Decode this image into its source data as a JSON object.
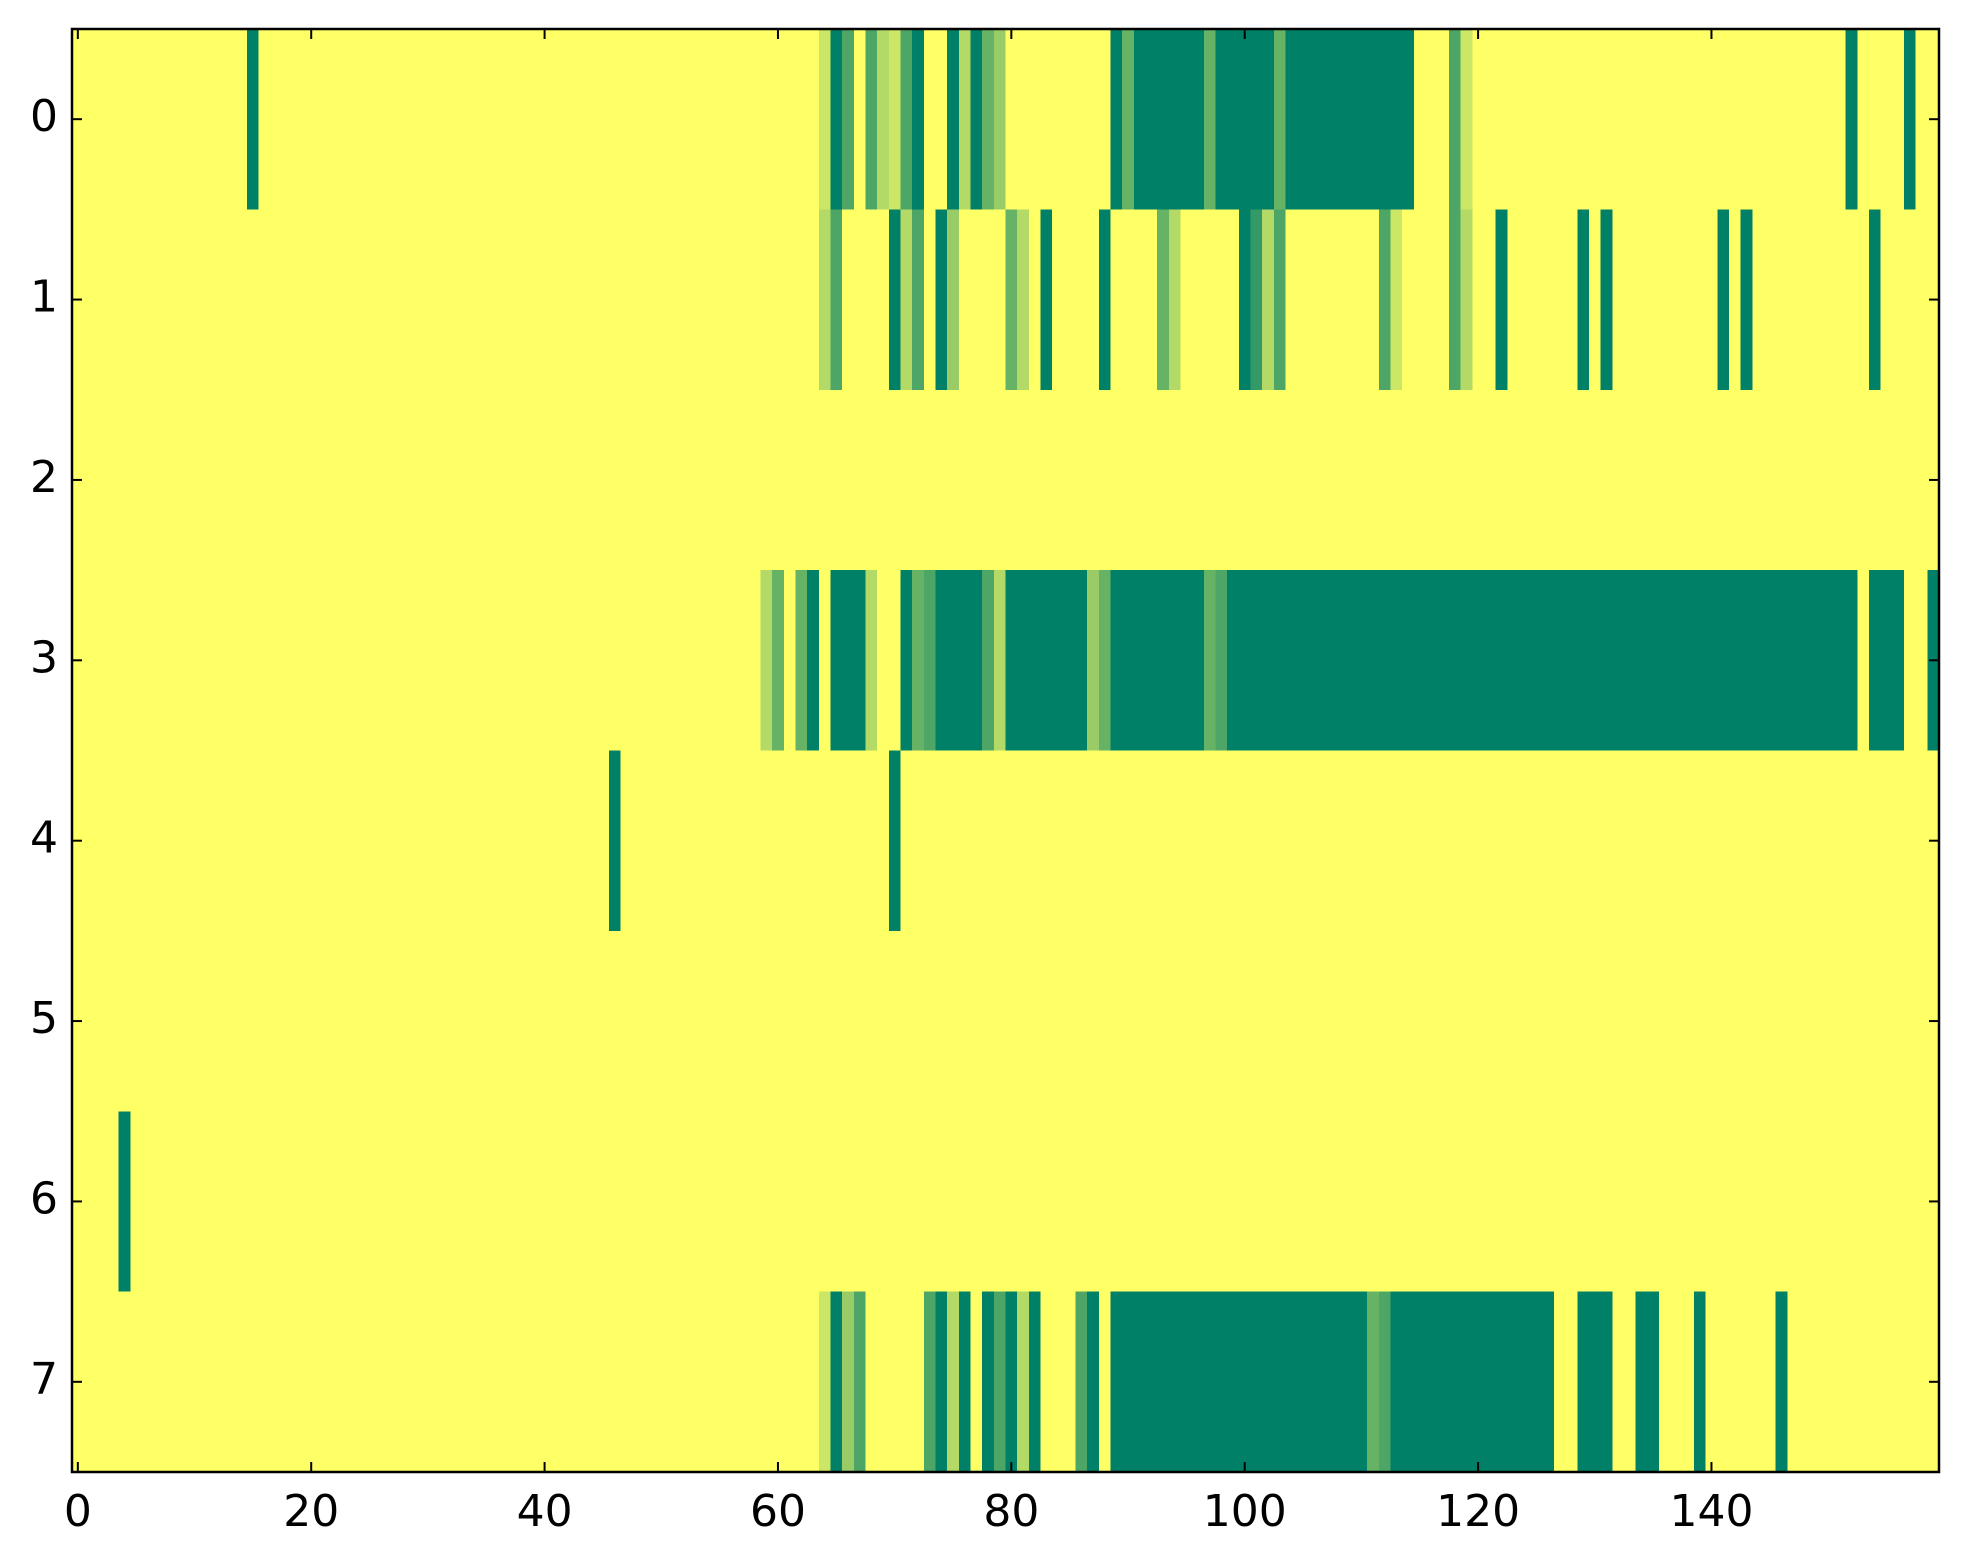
{
  "chart_data": {
    "type": "heatmap",
    "colormap": [
      "#ffff66",
      "#008066"
    ],
    "xlim": [
      -0.5,
      159.5
    ],
    "xticks": [
      0,
      20,
      40,
      60,
      80,
      100,
      120,
      140
    ],
    "ylim": [
      7.5,
      -0.5
    ],
    "yticks": [
      0,
      1,
      2,
      3,
      4,
      5,
      6,
      7
    ],
    "values": [
      [
        0,
        0,
        0,
        0,
        0,
        0,
        0,
        0,
        0,
        0,
        0,
        0,
        0,
        0,
        0,
        1,
        0,
        0,
        0,
        0,
        0,
        0,
        0,
        0,
        0,
        0,
        0,
        0,
        0,
        0,
        0,
        0,
        0,
        0,
        0,
        0,
        0,
        0,
        0,
        0,
        0,
        0,
        0,
        0,
        0,
        0,
        0,
        0,
        0,
        0,
        0,
        0,
        0,
        0,
        0,
        0,
        0,
        0,
        0,
        0,
        0,
        0,
        0,
        0,
        0.2,
        1,
        0.7,
        0,
        0.7,
        0.3,
        0.2,
        0.7,
        1,
        0,
        0,
        1,
        0.3,
        1,
        0.6,
        0.4,
        0,
        0,
        0,
        0,
        0,
        0,
        0,
        0,
        0,
        1,
        0.6,
        1,
        1,
        1,
        1,
        1,
        1,
        0.6,
        1,
        1,
        1,
        1,
        1,
        0.6,
        1,
        1,
        1,
        1,
        1,
        1,
        1,
        1,
        1,
        1,
        1,
        0,
        0,
        0,
        0.7,
        0.2,
        0,
        0,
        0,
        0,
        0,
        0,
        0,
        0,
        0,
        0,
        0,
        0,
        0,
        0,
        0,
        0,
        0,
        0,
        0,
        0,
        0,
        0,
        0,
        0,
        0,
        0,
        0,
        0,
        0,
        0,
        0,
        0,
        1,
        0,
        0,
        0,
        0,
        1,
        0,
        0
      ],
      [
        0,
        0,
        0,
        0,
        0,
        0,
        0,
        0,
        0,
        0,
        0,
        0,
        0,
        0,
        0,
        0,
        0,
        0,
        0,
        0,
        0,
        0,
        0,
        0,
        0,
        0,
        0,
        0,
        0,
        0,
        0,
        0,
        0,
        0,
        0,
        0,
        0,
        0,
        0,
        0,
        0,
        0,
        0,
        0,
        0,
        0,
        0,
        0,
        0,
        0,
        0,
        0,
        0,
        0,
        0,
        0,
        0,
        0,
        0,
        0,
        0,
        0,
        0,
        0,
        0.3,
        0.7,
        0,
        0,
        0,
        0,
        1,
        0.3,
        0.7,
        0,
        1,
        0.4,
        0,
        0,
        0,
        0,
        0.6,
        0.3,
        0,
        1,
        0,
        0,
        0,
        0,
        1,
        0,
        0,
        0,
        0,
        0.6,
        0.3,
        0,
        0,
        0,
        0,
        0,
        1,
        0.8,
        0.3,
        0.7,
        0,
        0,
        0,
        0,
        0,
        0,
        0,
        0,
        0.7,
        0.2,
        0,
        0,
        0,
        0,
        0.7,
        0.3,
        0,
        0,
        1,
        0,
        0,
        0,
        0,
        0,
        0,
        1,
        0,
        1,
        0,
        0,
        0,
        0,
        0,
        0,
        0,
        0,
        0,
        1,
        0,
        1,
        0,
        0,
        0,
        0,
        0,
        0,
        0,
        0,
        0,
        0,
        1,
        0,
        0,
        0,
        0,
        0
      ],
      [
        0,
        0,
        0,
        0,
        0,
        0,
        0,
        0,
        0,
        0,
        0,
        0,
        0,
        0,
        0,
        0,
        0,
        0,
        0,
        0,
        0,
        0,
        0,
        0,
        0,
        0,
        0,
        0,
        0,
        0,
        0,
        0,
        0,
        0,
        0,
        0,
        0,
        0,
        0,
        0,
        0,
        0,
        0,
        0,
        0,
        0,
        0,
        0,
        0,
        0,
        0,
        0,
        0,
        0,
        0,
        0,
        0,
        0,
        0,
        0,
        0,
        0,
        0,
        0,
        0,
        0,
        0,
        0,
        0,
        0,
        0,
        0,
        0,
        0,
        0,
        0,
        0,
        0,
        0,
        0,
        0,
        0,
        0,
        0,
        0,
        0,
        0,
        0,
        0,
        0,
        0,
        0,
        0,
        0,
        0,
        0,
        0,
        0,
        0,
        0,
        0,
        0,
        0,
        0,
        0,
        0,
        0,
        0,
        0,
        0,
        0,
        0,
        0,
        0,
        0,
        0,
        0,
        0,
        0,
        0,
        0,
        0,
        0,
        0,
        0,
        0,
        0,
        0,
        0,
        0,
        0,
        0,
        0,
        0,
        0,
        0,
        0,
        0,
        0,
        0,
        0,
        0,
        0,
        0,
        0,
        0,
        0,
        0,
        0,
        0,
        0,
        0,
        0,
        0,
        0,
        0,
        0,
        0,
        0,
        0
      ],
      [
        0,
        0,
        0,
        0,
        0,
        0,
        0,
        0,
        0,
        0,
        0,
        0,
        0,
        0,
        0,
        0,
        0,
        0,
        0,
        0,
        0,
        0,
        0,
        0,
        0,
        0,
        0,
        0,
        0,
        0,
        0,
        0,
        0,
        0,
        0,
        0,
        0,
        0,
        0,
        0,
        0,
        0,
        0,
        0,
        0,
        0,
        0,
        0,
        0,
        0,
        0,
        0,
        0,
        0,
        0,
        0,
        0,
        0,
        0,
        0.3,
        0.6,
        0,
        0.6,
        1,
        0,
        1,
        1,
        1,
        0.3,
        0,
        0,
        1,
        0.6,
        0.7,
        1,
        1,
        1,
        1,
        0.7,
        0.3,
        1,
        1,
        1,
        1,
        1,
        1,
        1,
        0.4,
        0.6,
        1,
        1,
        1,
        1,
        1,
        1,
        1,
        1,
        0.6,
        0.7,
        1,
        1,
        1,
        1,
        1,
        1,
        1,
        1,
        1,
        1,
        1,
        1,
        1,
        1,
        1,
        1,
        1,
        1,
        1,
        1,
        1,
        1,
        1,
        1,
        1,
        1,
        1,
        1,
        1,
        1,
        1,
        1,
        1,
        1,
        1,
        1,
        1,
        1,
        1,
        1,
        1,
        1,
        1,
        1,
        1,
        1,
        1,
        1,
        1,
        1,
        1,
        1,
        1,
        1,
        0,
        1,
        1,
        1,
        0,
        0,
        1
      ],
      [
        0,
        0,
        0,
        0,
        0,
        0,
        0,
        0,
        0,
        0,
        0,
        0,
        0,
        0,
        0,
        0,
        0,
        0,
        0,
        0,
        0,
        0,
        0,
        0,
        0,
        0,
        0,
        0,
        0,
        0,
        0,
        0,
        0,
        0,
        0,
        0,
        0,
        0,
        0,
        0,
        0,
        0,
        0,
        0,
        0,
        0,
        1,
        0,
        0,
        0,
        0,
        0,
        0,
        0,
        0,
        0,
        0,
        0,
        0,
        0,
        0,
        0,
        0,
        0,
        0,
        0,
        0,
        0,
        0,
        0,
        1,
        0,
        0,
        0,
        0,
        0,
        0,
        0,
        0,
        0,
        0,
        0,
        0,
        0,
        0,
        0,
        0,
        0,
        0,
        0,
        0,
        0,
        0,
        0,
        0,
        0,
        0,
        0,
        0,
        0,
        0,
        0,
        0,
        0,
        0,
        0,
        0,
        0,
        0,
        0,
        0,
        0,
        0,
        0,
        0,
        0,
        0,
        0,
        0,
        0,
        0,
        0,
        0,
        0,
        0,
        0,
        0,
        0,
        0,
        0,
        0,
        0,
        0,
        0,
        0,
        0,
        0,
        0,
        0,
        0,
        0,
        0,
        0,
        0,
        0,
        0,
        0,
        0,
        0,
        0,
        0,
        0,
        0,
        0,
        0,
        0,
        0,
        0,
        0,
        0
      ],
      [
        0,
        0,
        0,
        0,
        0,
        0,
        0,
        0,
        0,
        0,
        0,
        0,
        0,
        0,
        0,
        0,
        0,
        0,
        0,
        0,
        0,
        0,
        0,
        0,
        0,
        0,
        0,
        0,
        0,
        0,
        0,
        0,
        0,
        0,
        0,
        0,
        0,
        0,
        0,
        0,
        0,
        0,
        0,
        0,
        0,
        0,
        0,
        0,
        0,
        0,
        0,
        0,
        0,
        0,
        0,
        0,
        0,
        0,
        0,
        0,
        0,
        0,
        0,
        0,
        0,
        0,
        0,
        0,
        0,
        0,
        0,
        0,
        0,
        0,
        0,
        0,
        0,
        0,
        0,
        0,
        0,
        0,
        0,
        0,
        0,
        0,
        0,
        0,
        0,
        0,
        0,
        0,
        0,
        0,
        0,
        0,
        0,
        0,
        0,
        0,
        0,
        0,
        0,
        0,
        0,
        0,
        0,
        0,
        0,
        0,
        0,
        0,
        0,
        0,
        0,
        0,
        0,
        0,
        0,
        0,
        0,
        0,
        0,
        0,
        0,
        0,
        0,
        0,
        0,
        0,
        0,
        0,
        0,
        0,
        0,
        0,
        0,
        0,
        0,
        0,
        0,
        0,
        0,
        0,
        0,
        0,
        0,
        0,
        0,
        0,
        0,
        0,
        0,
        0,
        0,
        0,
        0,
        0,
        0,
        0
      ],
      [
        0,
        0,
        0,
        0,
        1,
        0,
        0,
        0,
        0,
        0,
        0,
        0,
        0,
        0,
        0,
        0,
        0,
        0,
        0,
        0,
        0,
        0,
        0,
        0,
        0,
        0,
        0,
        0,
        0,
        0,
        0,
        0,
        0,
        0,
        0,
        0,
        0,
        0,
        0,
        0,
        0,
        0,
        0,
        0,
        0,
        0,
        0,
        0,
        0,
        0,
        0,
        0,
        0,
        0,
        0,
        0,
        0,
        0,
        0,
        0,
        0,
        0,
        0,
        0,
        0,
        0,
        0,
        0,
        0,
        0,
        0,
        0,
        0,
        0,
        0,
        0,
        0,
        0,
        0,
        0,
        0,
        0,
        0,
        0,
        0,
        0,
        0,
        0,
        0,
        0,
        0,
        0,
        0,
        0,
        0,
        0,
        0,
        0,
        0,
        0,
        0,
        0,
        0,
        0,
        0,
        0,
        0,
        0,
        0,
        0,
        0,
        0,
        0,
        0,
        0,
        0,
        0,
        0,
        0,
        0,
        0,
        0,
        0,
        0,
        0,
        0,
        0,
        0,
        0,
        0,
        0,
        0,
        0,
        0,
        0,
        0,
        0,
        0,
        0,
        0,
        0,
        0,
        0,
        0,
        0,
        0,
        0,
        0,
        0,
        0,
        0,
        0,
        0,
        0,
        0,
        0,
        0,
        0,
        0,
        0
      ],
      [
        0,
        0,
        0,
        0,
        0,
        0,
        0,
        0,
        0,
        0,
        0,
        0,
        0,
        0,
        0,
        0,
        0,
        0,
        0,
        0,
        0,
        0,
        0,
        0,
        0,
        0,
        0,
        0,
        0,
        0,
        0,
        0,
        0,
        0,
        0,
        0,
        0,
        0,
        0,
        0,
        0,
        0,
        0,
        0,
        0,
        0,
        0,
        0,
        0,
        0,
        0,
        0,
        0,
        0,
        0,
        0,
        0,
        0,
        0,
        0,
        0,
        0,
        0,
        0,
        0.2,
        1,
        0.4,
        0.7,
        0,
        0,
        0,
        0,
        0,
        0.7,
        1,
        0.3,
        1,
        0,
        1,
        0.7,
        1,
        0.3,
        1,
        0,
        0,
        0,
        0.7,
        1,
        0,
        1,
        1,
        1,
        1,
        1,
        1,
        1,
        1,
        1,
        1,
        1,
        1,
        1,
        1,
        1,
        1,
        1,
        1,
        1,
        1,
        1,
        1,
        0.6,
        0.7,
        1,
        1,
        1,
        1,
        1,
        1,
        1,
        1,
        1,
        1,
        1,
        1,
        1,
        1,
        0,
        0,
        1,
        1,
        1,
        0,
        0,
        1,
        1,
        0,
        0,
        0,
        1,
        0,
        0,
        0,
        0,
        0,
        0,
        1,
        0,
        0,
        0,
        0,
        0,
        0,
        0,
        0,
        0,
        0,
        0,
        0,
        0
      ]
    ]
  }
}
